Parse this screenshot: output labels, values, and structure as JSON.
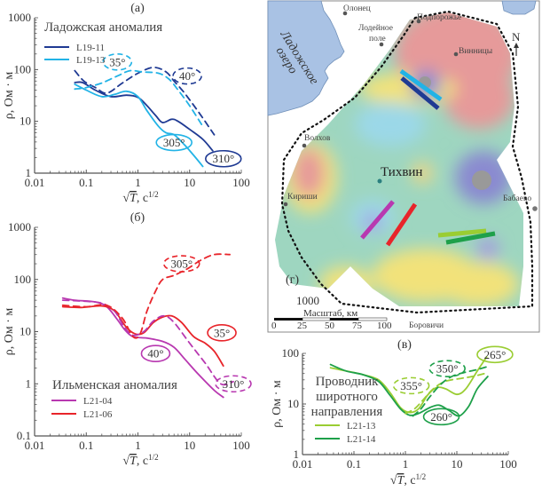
{
  "chart_data": [
    {
      "id": "a",
      "type": "line",
      "panel_label": "(а)",
      "xlabel": "√T, с^1/2",
      "ylabel": "ρ, Ом · м",
      "xscale": "log",
      "yscale": "log",
      "xlim": [
        0.01,
        100
      ],
      "ylim": [
        1,
        1000
      ],
      "xticks": [
        "0.01",
        "0.1",
        "1",
        "10",
        "100"
      ],
      "yticks": [
        "1",
        "10",
        "100",
        "1000"
      ],
      "legend": {
        "title": "Ладожская аномалия",
        "placement": "top-left"
      },
      "series": [
        {
          "name": "L19-11",
          "color": "#1f3a93",
          "style": "solid",
          "legend": true,
          "points": [
            [
              0.06,
              56
            ],
            [
              0.085,
              56
            ],
            [
              0.15,
              40
            ],
            [
              0.3,
              30
            ],
            [
              0.6,
              32
            ],
            [
              1.0,
              29
            ],
            [
              1.5,
              20
            ],
            [
              2.2,
              13
            ],
            [
              3.0,
              9.5
            ],
            [
              4.5,
              11
            ],
            [
              6,
              10
            ],
            [
              10,
              7
            ],
            [
              18,
              4.5
            ],
            [
              28,
              2.7
            ]
          ]
        },
        {
          "name": "L19-13",
          "color": "#22b3e6",
          "style": "solid",
          "legend": true,
          "points": [
            [
              0.06,
              52
            ],
            [
              0.1,
              40
            ],
            [
              0.2,
              30
            ],
            [
              0.35,
              33
            ],
            [
              0.6,
              38
            ],
            [
              1.0,
              30
            ],
            [
              1.5,
              16
            ],
            [
              2.5,
              8
            ],
            [
              3.5,
              6
            ],
            [
              5,
              5.5
            ],
            [
              8,
              3.5
            ],
            [
              12,
              2.2
            ],
            [
              18,
              1.35
            ]
          ]
        },
        {
          "name": "L19-11 (40°)",
          "color": "#1f3a93",
          "style": "dashed",
          "legend": false,
          "points": [
            [
              0.06,
              95
            ],
            [
              0.09,
              60
            ],
            [
              0.15,
              45
            ],
            [
              0.25,
              35
            ],
            [
              0.5,
              55
            ],
            [
              1.0,
              85
            ],
            [
              2.0,
              110
            ],
            [
              3.5,
              90
            ],
            [
              5,
              60
            ],
            [
              8,
              35
            ],
            [
              15,
              15
            ],
            [
              30,
              5.5
            ]
          ]
        },
        {
          "name": "L19-13 (35°)",
          "color": "#22b3e6",
          "style": "dashed",
          "legend": false,
          "points": [
            [
              0.06,
              42
            ],
            [
              0.1,
              45
            ],
            [
              0.2,
              55
            ],
            [
              0.4,
              75
            ],
            [
              0.7,
              95
            ],
            [
              1.2,
              90
            ],
            [
              2.5,
              85
            ],
            [
              4,
              65
            ],
            [
              6,
              40
            ],
            [
              10,
              20
            ],
            [
              18,
              8
            ]
          ]
        }
      ],
      "annotations": [
        {
          "text": "35°",
          "color": "#22b3e6",
          "border": "dashed",
          "x": 0.4,
          "y": 140
        },
        {
          "text": "40°",
          "color": "#1f3a93",
          "border": "dashed",
          "x": 9,
          "y": 75
        },
        {
          "text": "305°",
          "color": "#22b3e6",
          "border": "solid",
          "x": 5,
          "y": 3.9
        },
        {
          "text": "310°",
          "color": "#1f3a93",
          "border": "solid",
          "x": 45,
          "y": 1.9
        }
      ]
    },
    {
      "id": "b",
      "type": "line",
      "panel_label": "(б)",
      "xlabel": "√T, с^1/2",
      "ylabel": "ρ, Ом · м",
      "xscale": "log",
      "yscale": "log",
      "xlim": [
        0.01,
        100
      ],
      "ylim": [
        0.1,
        1000
      ],
      "xticks": [
        "0.01",
        "0.1",
        "1",
        "10",
        "100"
      ],
      "yticks": [
        "0.1",
        "1",
        "10",
        "100",
        "1000"
      ],
      "legend": {
        "title": "Ильменская аномалия",
        "placement": "bottom-left"
      },
      "series": [
        {
          "name": "L21-04",
          "color": "#b838b0",
          "style": "solid",
          "legend": true,
          "points": [
            [
              0.035,
              44
            ],
            [
              0.06,
              40
            ],
            [
              0.15,
              37
            ],
            [
              0.25,
              30
            ],
            [
              0.4,
              17
            ],
            [
              0.55,
              11
            ],
            [
              0.8,
              8
            ],
            [
              1.5,
              7.5
            ],
            [
              3,
              6.5
            ],
            [
              5,
              5
            ],
            [
              8,
              3
            ],
            [
              15,
              1.5
            ],
            [
              30,
              0.75
            ],
            [
              45,
              0.55
            ]
          ]
        },
        {
          "name": "L21-06",
          "color": "#e8242a",
          "style": "solid",
          "legend": true,
          "points": [
            [
              0.035,
              30
            ],
            [
              0.08,
              29
            ],
            [
              0.2,
              31
            ],
            [
              0.35,
              25
            ],
            [
              0.6,
              12
            ],
            [
              0.9,
              9
            ],
            [
              1.3,
              9.5
            ],
            [
              2,
              15
            ],
            [
              3,
              19
            ],
            [
              4.5,
              20
            ],
            [
              7,
              15
            ],
            [
              12,
              8
            ],
            [
              20,
              6
            ],
            [
              30,
              4.2
            ],
            [
              45,
              2.2
            ]
          ]
        },
        {
          "name": "L21-04 (310°)",
          "color": "#b838b0",
          "style": "dashed",
          "legend": false,
          "points": [
            [
              0.035,
              40
            ],
            [
              0.1,
              38
            ],
            [
              0.2,
              35
            ],
            [
              0.35,
              25
            ],
            [
              0.55,
              12
            ],
            [
              0.8,
              8.5
            ],
            [
              1.3,
              10
            ],
            [
              2,
              16
            ],
            [
              3.2,
              20
            ],
            [
              5,
              15
            ],
            [
              10,
              6
            ],
            [
              20,
              2.5
            ],
            [
              40,
              1.0
            ],
            [
              70,
              1.1
            ]
          ]
        },
        {
          "name": "L21-06 (305°)",
          "color": "#e8242a",
          "style": "dashed",
          "legend": false,
          "points": [
            [
              0.035,
              32
            ],
            [
              0.1,
              30
            ],
            [
              0.25,
              32
            ],
            [
              0.5,
              18
            ],
            [
              0.8,
              8
            ],
            [
              1.1,
              9
            ],
            [
              1.5,
              25
            ],
            [
              2.2,
              60
            ],
            [
              3,
              100
            ],
            [
              5,
              120
            ],
            [
              9,
              160
            ],
            [
              16,
              230
            ],
            [
              30,
              300
            ],
            [
              60,
              300
            ]
          ]
        }
      ],
      "annotations": [
        {
          "text": "305°",
          "color": "#e8242a",
          "border": "dashed",
          "x": 7,
          "y": 200
        },
        {
          "text": "35°",
          "color": "#e8242a",
          "border": "solid",
          "x": 42,
          "y": 9.5
        },
        {
          "text": "40°",
          "color": "#b838b0",
          "border": "solid",
          "x": 2.2,
          "y": 3.8
        },
        {
          "text": "310°",
          "color": "#b838b0",
          "border": "dashed",
          "x": 70,
          "y": 1.0
        }
      ]
    },
    {
      "id": "v",
      "type": "line",
      "panel_label": "(в)",
      "xlabel": "√T, с^1/2",
      "ylabel": "ρ, Ом · м",
      "xscale": "log",
      "yscale": "log",
      "xlim": [
        0.01,
        100
      ],
      "ylim": [
        1,
        100
      ],
      "xticks": [
        "0.01",
        "0.1",
        "1",
        "10",
        "100"
      ],
      "yticks": [
        "1",
        "10",
        "100"
      ],
      "legend": {
        "title": "Проводник широтного направления",
        "placement": "left"
      },
      "series": [
        {
          "name": "L21-13",
          "color": "#9acd32",
          "style": "solid",
          "legend": true,
          "points": [
            [
              0.035,
              52
            ],
            [
              0.07,
              45
            ],
            [
              0.15,
              38
            ],
            [
              0.3,
              30
            ],
            [
              0.5,
              17
            ],
            [
              0.8,
              8.5
            ],
            [
              1.2,
              6.8
            ],
            [
              1.8,
              8
            ],
            [
              2.7,
              15
            ],
            [
              4,
              21
            ],
            [
              6,
              20
            ],
            [
              10,
              15.5
            ],
            [
              15,
              20
            ],
            [
              25,
              45
            ],
            [
              38,
              85
            ]
          ]
        },
        {
          "name": "L21-14",
          "color": "#1ea04a",
          "style": "solid",
          "legend": true,
          "points": [
            [
              0.035,
              60
            ],
            [
              0.07,
              45
            ],
            [
              0.15,
              38
            ],
            [
              0.3,
              28
            ],
            [
              0.5,
              15
            ],
            [
              0.8,
              8
            ],
            [
              1.2,
              6
            ],
            [
              1.8,
              6.5
            ],
            [
              3,
              8.5
            ],
            [
              4.5,
              9.5
            ],
            [
              7,
              7.5
            ],
            [
              11,
              5.8
            ],
            [
              17,
              9
            ],
            [
              25,
              20
            ],
            [
              40,
              35
            ]
          ]
        },
        {
          "name": "L21-13 (355°)",
          "color": "#9acd32",
          "style": "dashed",
          "legend": false,
          "points": [
            [
              1.0,
              6.5
            ],
            [
              1.5,
              8
            ],
            [
              2.2,
              12
            ],
            [
              3.5,
              20
            ],
            [
              6,
              28
            ],
            [
              12,
              32
            ],
            [
              20,
              35
            ],
            [
              35,
              40
            ]
          ]
        },
        {
          "name": "L21-14 (350°)",
          "color": "#1ea04a",
          "style": "dashed",
          "legend": false,
          "points": [
            [
              1.4,
              5.8
            ],
            [
              2,
              8
            ],
            [
              3,
              14
            ],
            [
              5,
              25
            ],
            [
              8,
              35
            ],
            [
              14,
              42
            ],
            [
              25,
              48
            ],
            [
              40,
              55
            ]
          ]
        }
      ],
      "annotations": [
        {
          "text": "265°",
          "color": "#9acd32",
          "border": "solid",
          "x": 55,
          "y": 95
        },
        {
          "text": "350°",
          "color": "#1ea04a",
          "border": "dashed",
          "x": 6.5,
          "y": 50
        },
        {
          "text": "355°",
          "color": "#9acd32",
          "border": "dashed",
          "x": 1.3,
          "y": 23
        },
        {
          "text": "260°",
          "color": "#1ea04a",
          "border": "solid",
          "x": 5,
          "y": 5.6
        }
      ]
    }
  ],
  "map": {
    "panel_label": "(г)",
    "lake_label_line1": "Ладожское",
    "lake_label_line2": "озеро",
    "north_label": "N",
    "center_city": "Тихвин",
    "towns": [
      {
        "name": "Олонец"
      },
      {
        "name": "Лодейное"
      },
      {
        "name": "поле"
      },
      {
        "name": "Подпорожье"
      },
      {
        "name": "Винницы"
      },
      {
        "name": "Волхов"
      },
      {
        "name": "Кириши"
      },
      {
        "name": "Бабаево"
      },
      {
        "name": "Боровичи"
      }
    ],
    "scale_value": "1000",
    "scale_title": "Масштаб, км",
    "scale_ticks": [
      "0",
      "25",
      "50",
      "75",
      "100"
    ],
    "profiles": [
      {
        "name": "L19-11",
        "color": "#1f3a93"
      },
      {
        "name": "L19-13",
        "color": "#22b3e6"
      },
      {
        "name": "L21-04",
        "color": "#b838b0"
      },
      {
        "name": "L21-06",
        "color": "#e8242a"
      },
      {
        "name": "L21-13",
        "color": "#9acd32"
      },
      {
        "name": "L21-14",
        "color": "#1ea04a"
      }
    ]
  }
}
